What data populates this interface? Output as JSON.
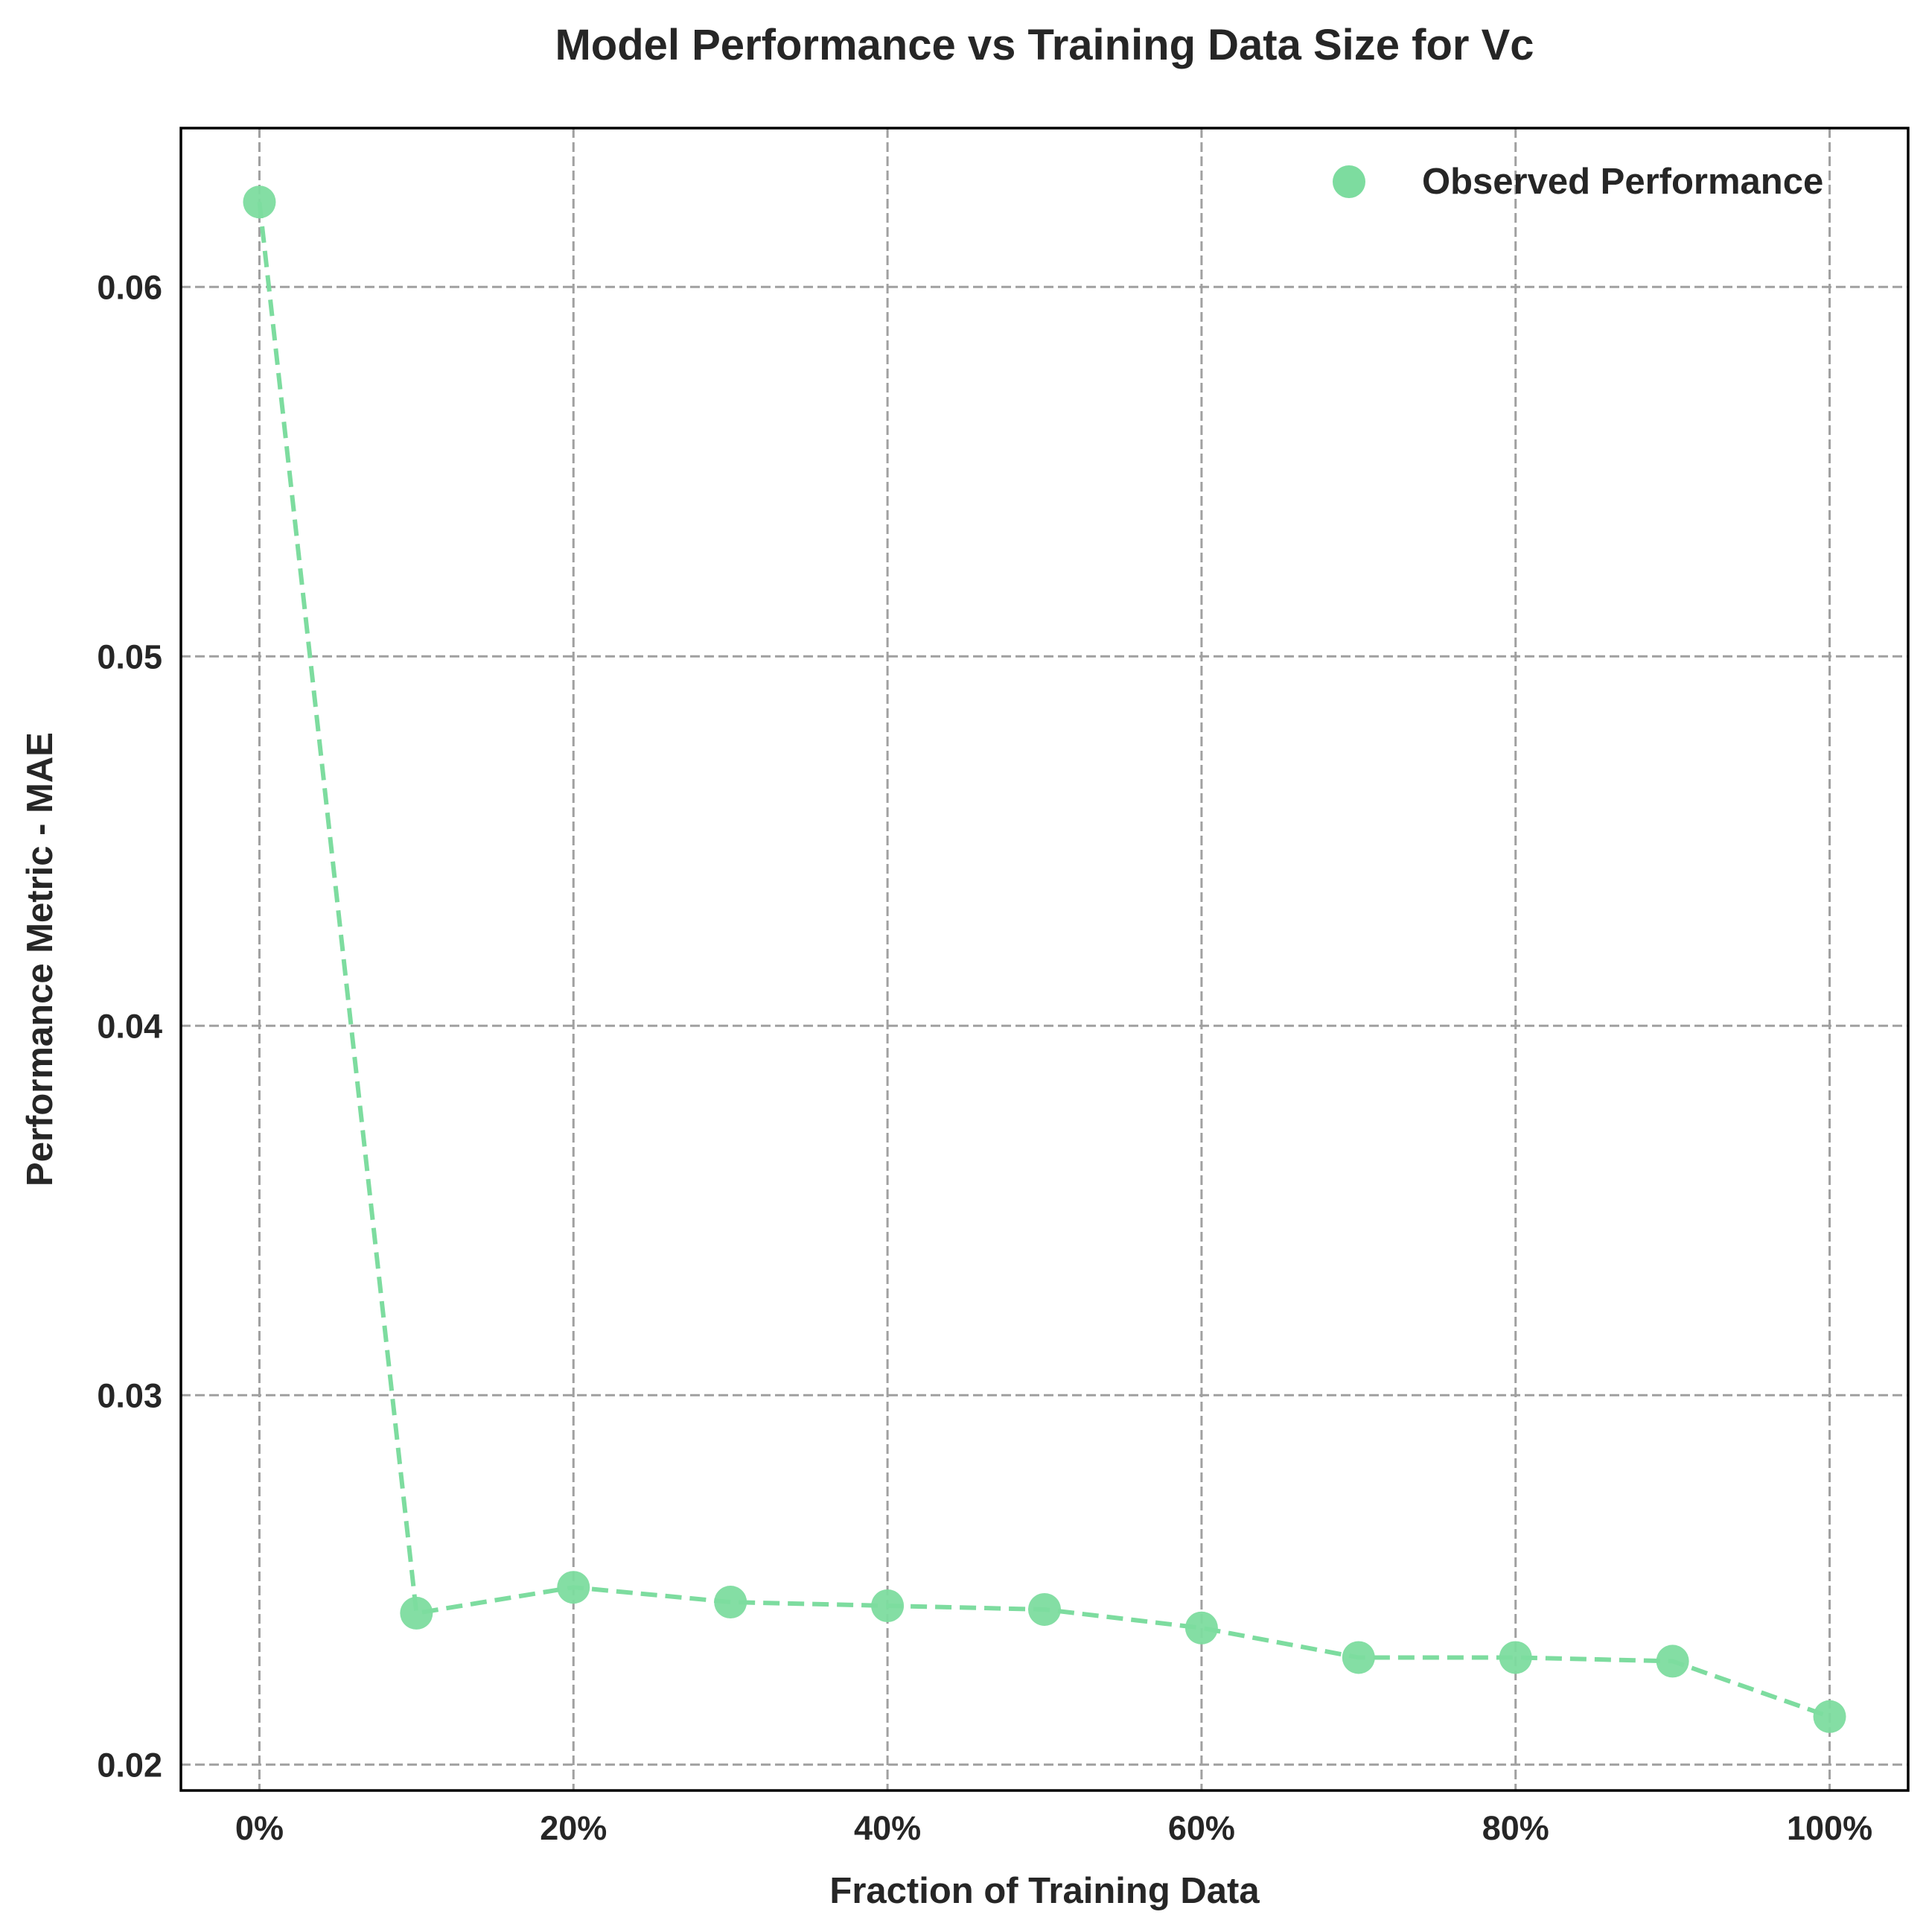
{
  "chart_data": {
    "type": "line",
    "title": "Model Performance vs Training Data Size for Vc",
    "xlabel": "Fraction of Training Data",
    "ylabel": "Performance Metric - MAE",
    "x": [
      0,
      10,
      20,
      30,
      40,
      50,
      60,
      70,
      80,
      90,
      100
    ],
    "series": [
      {
        "name": "Observed Performance",
        "values": [
          0.0623,
          0.0241,
          0.0248,
          0.0244,
          0.0243,
          0.0242,
          0.0237,
          0.0229,
          0.0229,
          0.0228,
          0.0213
        ],
        "color": "#7ddc9f",
        "line_style": "dashed",
        "marker": "circle"
      }
    ],
    "xlim": [
      -5,
      105
    ],
    "ylim": [
      0.0193,
      0.0643
    ],
    "xticks": [
      0,
      20,
      40,
      60,
      80,
      100
    ],
    "xtick_labels": [
      "0%",
      "20%",
      "40%",
      "60%",
      "80%",
      "100%"
    ],
    "yticks": [
      0.02,
      0.03,
      0.04,
      0.05,
      0.06
    ],
    "ytick_labels": [
      "0.02",
      "0.03",
      "0.04",
      "0.05",
      "0.06"
    ],
    "grid": true,
    "grid_style": "dashed",
    "legend_position": "upper-right"
  }
}
